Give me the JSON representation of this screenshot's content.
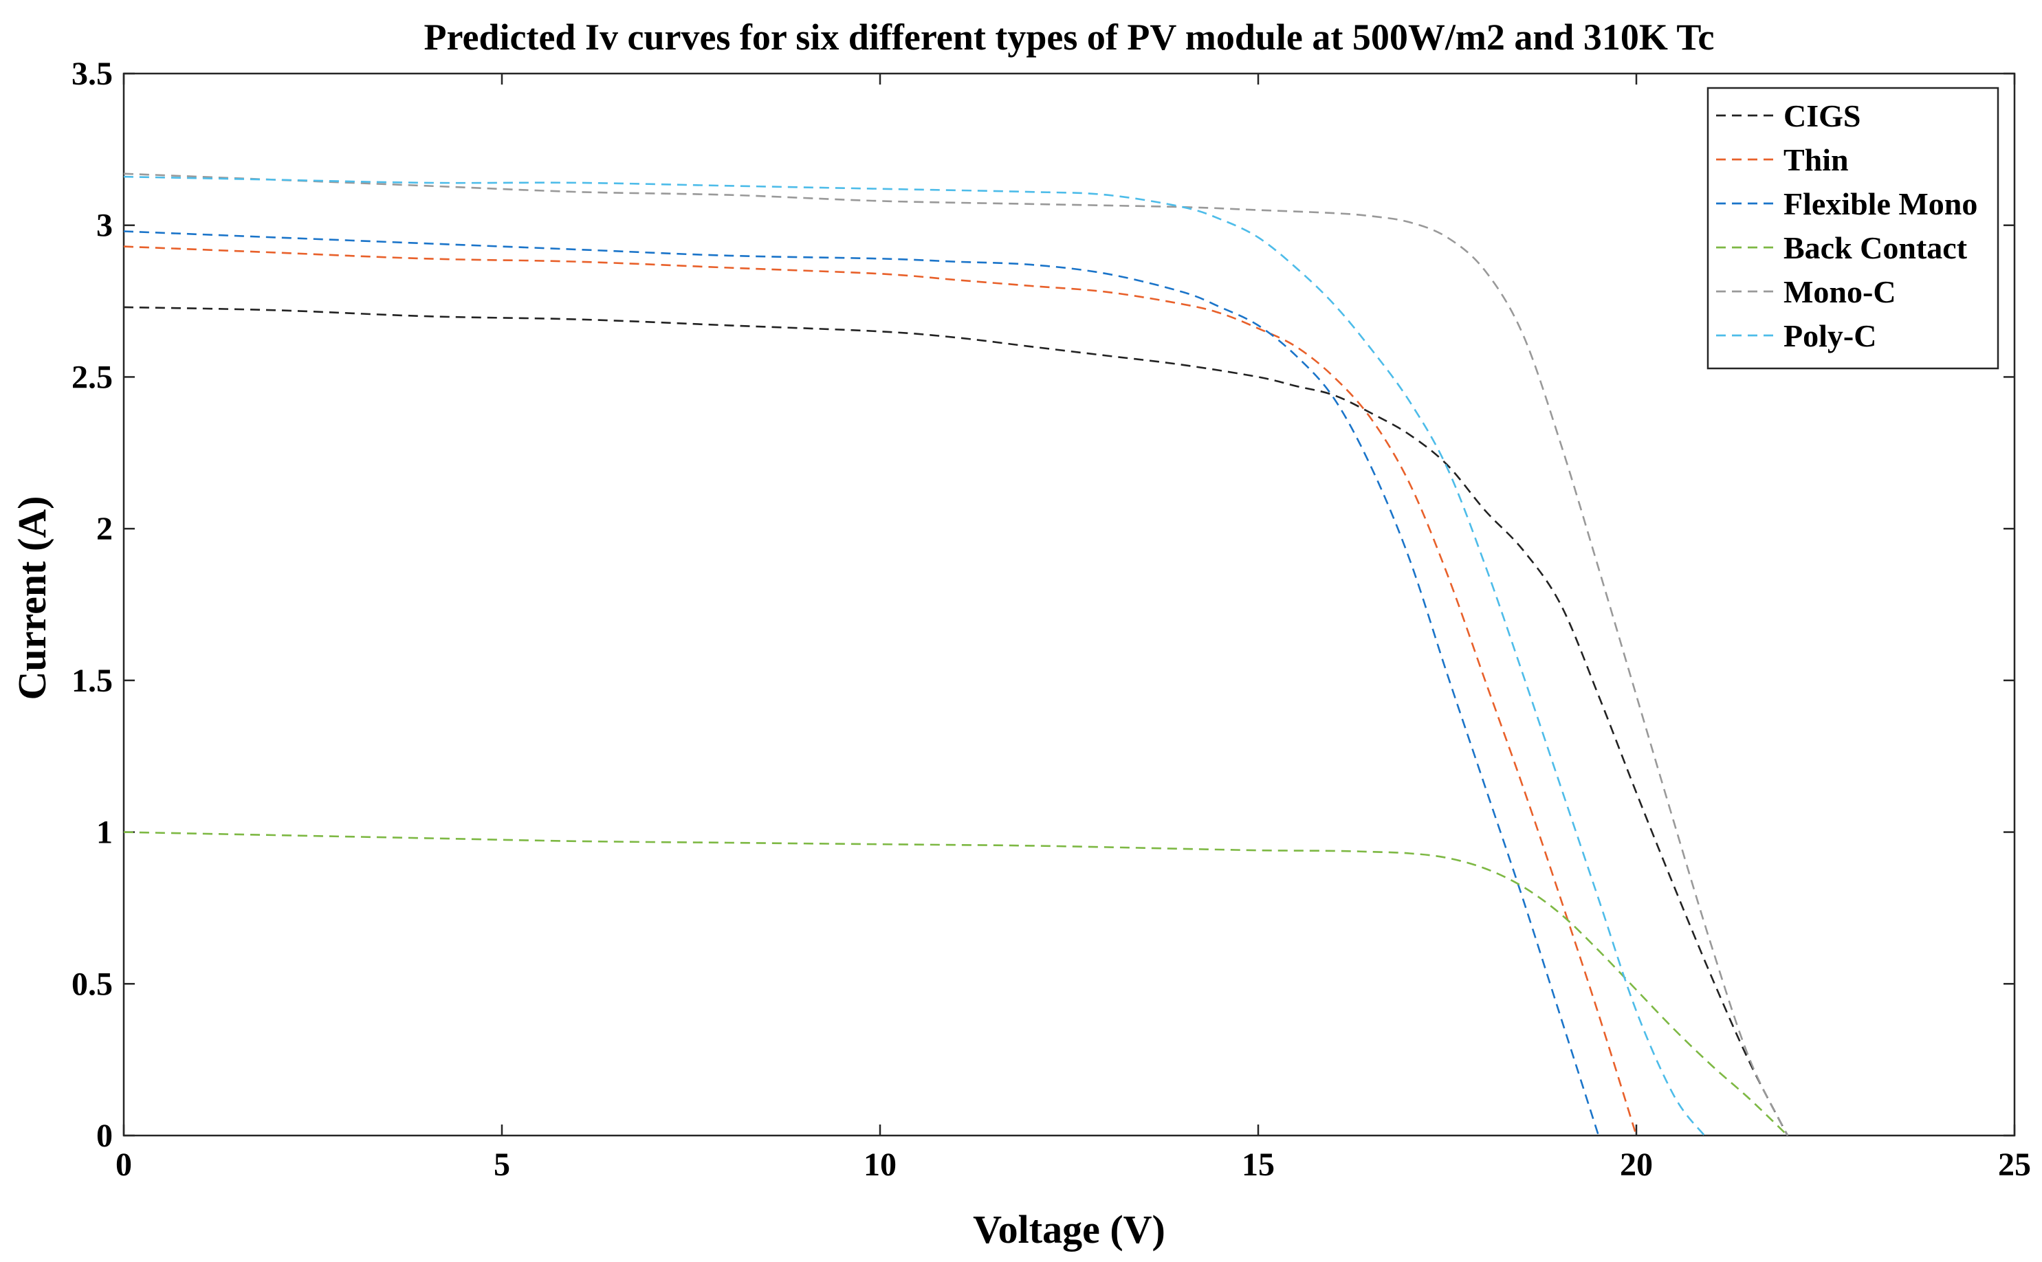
{
  "chart_data": {
    "type": "line",
    "title": "Predicted Iv curves for six different types of PV module at 500W/m2 and 310K Tc",
    "xlabel": "Voltage (V)",
    "ylabel": "Current (A)",
    "xlim": [
      0,
      25
    ],
    "ylim": [
      0,
      3.5
    ],
    "xticks": [
      0,
      5,
      10,
      15,
      20,
      25
    ],
    "yticks": [
      0,
      0.5,
      1,
      1.5,
      2,
      2.5,
      3,
      3.5
    ],
    "xtick_labels": [
      "0",
      "5",
      "10",
      "15",
      "20",
      "25"
    ],
    "ytick_labels": [
      "0",
      "0.5",
      "1",
      "1.5",
      "2",
      "2.5",
      "3",
      "3.5"
    ],
    "grid": false,
    "legend_position": "top-right",
    "line_style": "dashed",
    "series": [
      {
        "name": "CIGS",
        "color": "#222222",
        "x": [
          0,
          2,
          4,
          6,
          8,
          10,
          11,
          12,
          13,
          14,
          15,
          15.5,
          16,
          16.5,
          17,
          17.5,
          18,
          18.5,
          19,
          19.5,
          20,
          20.5,
          21,
          21.5,
          22
        ],
        "y": [
          2.73,
          2.72,
          2.7,
          2.69,
          2.67,
          2.65,
          2.63,
          2.6,
          2.57,
          2.54,
          2.5,
          2.47,
          2.44,
          2.38,
          2.31,
          2.21,
          2.06,
          1.93,
          1.75,
          1.45,
          1.13,
          0.82,
          0.52,
          0.24,
          0.0
        ]
      },
      {
        "name": "Thin",
        "color": "#E8602A",
        "x": [
          0,
          2,
          4,
          6,
          8,
          10,
          11,
          12,
          13,
          14,
          14.5,
          15,
          15.5,
          16,
          16.5,
          17,
          17.5,
          18,
          18.5,
          19,
          19.5,
          20
        ],
        "y": [
          2.93,
          2.91,
          2.89,
          2.88,
          2.86,
          2.84,
          2.82,
          2.8,
          2.78,
          2.74,
          2.71,
          2.66,
          2.6,
          2.5,
          2.36,
          2.15,
          1.85,
          1.5,
          1.15,
          0.78,
          0.4,
          0.0
        ]
      },
      {
        "name": "Flexible Mono",
        "color": "#1A74C9",
        "x": [
          0,
          2,
          4,
          6,
          8,
          10,
          11,
          12,
          13,
          14,
          14.5,
          15,
          15.5,
          16,
          16.5,
          17,
          17.5,
          18,
          18.5,
          19,
          19.5
        ],
        "y": [
          2.98,
          2.96,
          2.94,
          2.92,
          2.9,
          2.89,
          2.88,
          2.87,
          2.84,
          2.78,
          2.73,
          2.67,
          2.57,
          2.43,
          2.2,
          1.9,
          1.52,
          1.15,
          0.78,
          0.39,
          0.0
        ]
      },
      {
        "name": "Back Contact",
        "color": "#7DB843",
        "x": [
          0,
          2,
          4,
          6,
          8,
          10,
          12,
          14,
          15,
          16,
          16.5,
          17,
          17.5,
          18,
          18.5,
          19,
          19.5,
          20,
          20.5,
          21,
          21.5,
          22
        ],
        "y": [
          1.0,
          0.99,
          0.98,
          0.97,
          0.965,
          0.96,
          0.955,
          0.945,
          0.94,
          0.938,
          0.935,
          0.93,
          0.915,
          0.88,
          0.82,
          0.73,
          0.61,
          0.48,
          0.35,
          0.23,
          0.12,
          0.0
        ]
      },
      {
        "name": "Mono-C",
        "color": "#999999",
        "x": [
          0,
          2,
          4,
          6,
          8,
          10,
          12,
          14,
          15,
          16,
          16.5,
          17,
          17.5,
          18,
          18.5,
          19,
          19.5,
          20,
          20.5,
          21,
          21.5,
          22
        ],
        "y": [
          3.17,
          3.15,
          3.13,
          3.11,
          3.1,
          3.08,
          3.07,
          3.06,
          3.05,
          3.04,
          3.03,
          3.01,
          2.96,
          2.85,
          2.64,
          2.28,
          1.87,
          1.45,
          1.03,
          0.62,
          0.25,
          0.0
        ]
      },
      {
        "name": "Poly-C",
        "color": "#4DBCE9",
        "x": [
          0,
          2,
          4,
          6,
          8,
          10,
          12,
          13,
          14,
          14.5,
          15,
          15.5,
          16,
          16.5,
          17,
          17.5,
          18,
          18.5,
          19,
          19.5,
          20,
          20.5,
          20.9
        ],
        "y": [
          3.16,
          3.15,
          3.14,
          3.14,
          3.13,
          3.12,
          3.11,
          3.1,
          3.06,
          3.02,
          2.96,
          2.86,
          2.74,
          2.59,
          2.42,
          2.2,
          1.88,
          1.52,
          1.15,
          0.78,
          0.41,
          0.13,
          0.0
        ]
      }
    ]
  }
}
